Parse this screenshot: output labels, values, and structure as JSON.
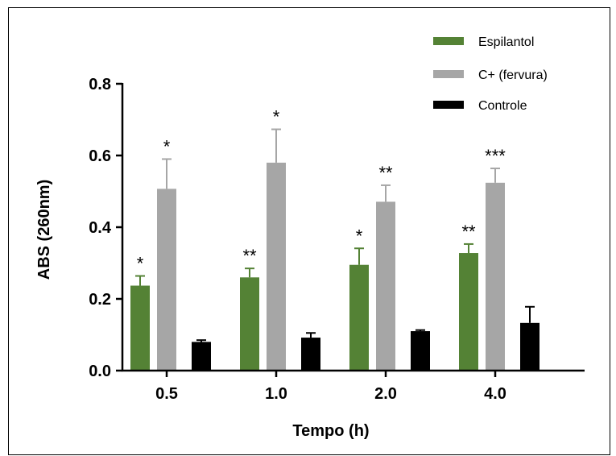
{
  "chart_data": {
    "type": "bar",
    "title": "",
    "xlabel": "Tempo (h)",
    "ylabel": "ABS (260nm)",
    "categories": [
      "0.5",
      "1.0",
      "2.0",
      "4.0"
    ],
    "ylim": [
      0,
      0.8
    ],
    "yticks": [
      "0.0",
      "0.2",
      "0.4",
      "0.6",
      "0.8"
    ],
    "grid": false,
    "legend_position": "top-right",
    "series": [
      {
        "name": "Espilantol",
        "color": "#548235",
        "values": [
          0.237,
          0.26,
          0.295,
          0.328
        ],
        "errors": [
          0.027,
          0.025,
          0.046,
          0.025
        ],
        "significance": [
          "*",
          "**",
          "*",
          "**"
        ]
      },
      {
        "name": "C+ (fervura)",
        "color": "#a6a6a6",
        "values": [
          0.507,
          0.58,
          0.471,
          0.524
        ],
        "errors": [
          0.083,
          0.093,
          0.046,
          0.04
        ],
        "significance": [
          "*",
          "*",
          "**",
          "***"
        ]
      },
      {
        "name": "Controle",
        "color": "#000000",
        "values": [
          0.08,
          0.092,
          0.11,
          0.133
        ],
        "errors": [
          0.005,
          0.013,
          0.003,
          0.045
        ],
        "significance": [
          "",
          "",
          "",
          ""
        ]
      }
    ]
  }
}
